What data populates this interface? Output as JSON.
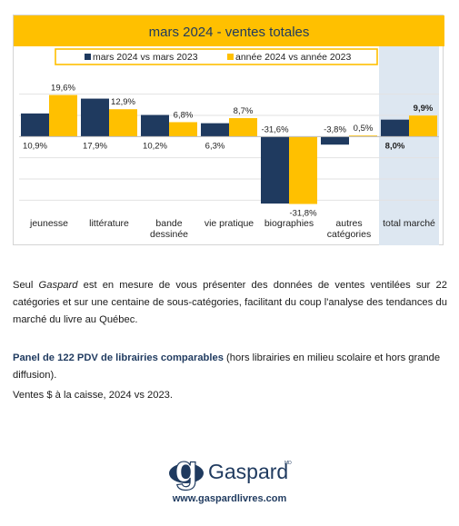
{
  "chart_data": {
    "type": "bar",
    "title": "mars 2024 - ventes totales",
    "categories": [
      [
        "jeunesse"
      ],
      [
        "littérature"
      ],
      [
        "bande",
        "dessinée"
      ],
      [
        "vie pratique"
      ],
      [
        "biographies"
      ],
      [
        "autres",
        "catégories"
      ],
      [
        "total marché"
      ]
    ],
    "series": [
      {
        "name": "mars 2024 vs mars 2023",
        "values": [
          10.9,
          17.9,
          10.2,
          6.3,
          -31.6,
          -3.8,
          8.0
        ],
        "labels": [
          "10,9%",
          "17,9%",
          "10,2%",
          "6,3%",
          "-31,6%",
          "-3,8%",
          "8,0%"
        ],
        "color": "#1f3a5f"
      },
      {
        "name": "année 2024 vs année 2023",
        "values": [
          19.6,
          12.9,
          6.8,
          8.7,
          -31.8,
          0.5,
          9.9
        ],
        "labels": [
          "19,6%",
          "12,9%",
          "6,8%",
          "8,7%",
          "-31,8%",
          "0,5%",
          "9,9%"
        ],
        "color": "#ffc000"
      }
    ],
    "ylim": [
      -35,
      25
    ],
    "grid": true,
    "legend": "top",
    "highlight_category": "total marché",
    "colors": {
      "title_bar": "#ffc000",
      "highlight_band": "#dde7f1",
      "grid": "#e2e2e2"
    }
  },
  "text": {
    "p1_a": "Seul ",
    "p1_em": "Gaspard",
    "p1_b": " est en mesure de vous présenter des données de ventes ventilées sur 22 catégories et sur une centaine de sous-catégories, facilitant du coup l'analyse des tendances du marché du livre au Québec.",
    "p2_bold": "Panel de 122 PDV de librairies comparables",
    "p2_rest": " (hors librairies en milieu scolaire et hors grande diffusion).",
    "p3": "Ventes $ à la caisse, 2024 vs 2023.",
    "logo_word": "Gaspard",
    "logo_mark": "MD",
    "website": "www.gaspardlivres.com"
  }
}
